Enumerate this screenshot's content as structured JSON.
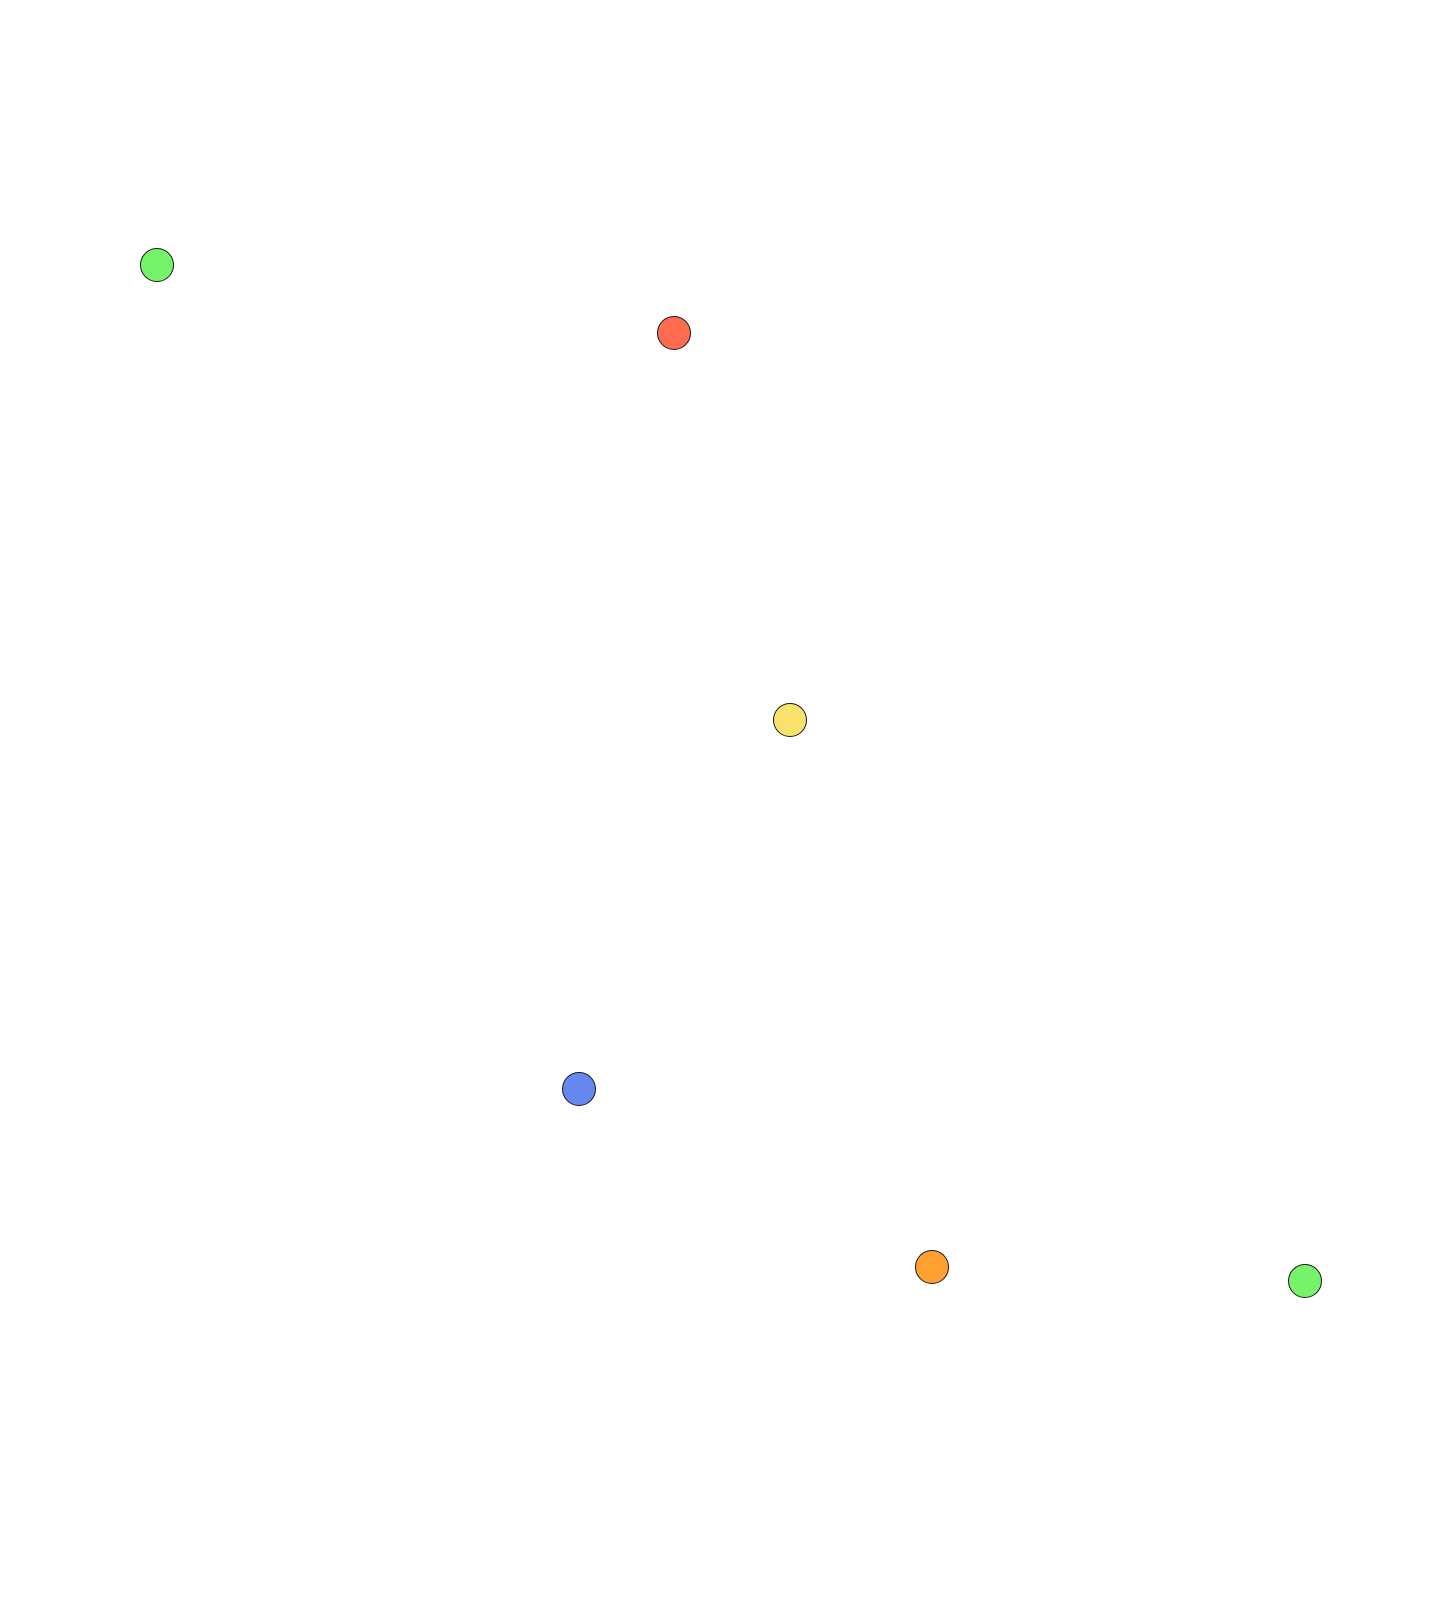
{
  "dots": [
    {
      "name": "green-dot-top-left",
      "color": "#77f36a"
    },
    {
      "name": "red-dot",
      "color": "#ff6b4f"
    },
    {
      "name": "yellow-dot",
      "color": "#f9e26b"
    },
    {
      "name": "blue-dot",
      "color": "#6488ef"
    },
    {
      "name": "orange-dot",
      "color": "#ffa031"
    },
    {
      "name": "green-dot-bottom-right",
      "color": "#77f36a"
    }
  ]
}
